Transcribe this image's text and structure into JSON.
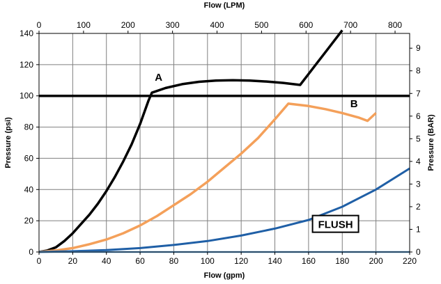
{
  "chart_data": {
    "type": "line",
    "xlabel": "Flow (gpm)",
    "ylabel": "Pressure (psi)",
    "x2label": "Flow (LPM)",
    "y2label": "Pressure (BAR)",
    "xlim": [
      0,
      220
    ],
    "ylim": [
      0,
      140
    ],
    "x2lim": [
      0,
      832.8
    ],
    "y2lim": [
      0,
      9.652
    ],
    "xticks": [
      "0",
      "20",
      "40",
      "60",
      "80",
      "100",
      "120",
      "140",
      "160",
      "180",
      "200",
      "220"
    ],
    "yticks": [
      "0",
      "20",
      "40",
      "60",
      "80",
      "100",
      "120",
      "140"
    ],
    "x2ticks": [
      "0",
      "100",
      "200",
      "300",
      "400",
      "500",
      "600",
      "700",
      "800"
    ],
    "y2ticks": [
      "0",
      "1",
      "2",
      "3",
      "4",
      "5",
      "6",
      "7",
      "8",
      "9"
    ],
    "grid": true,
    "series": [
      {
        "name": "A",
        "color": "#000000",
        "x": [
          0,
          5,
          10,
          15,
          20,
          25,
          30,
          35,
          40,
          45,
          50,
          55,
          60,
          65,
          67,
          75,
          85,
          95,
          105,
          115,
          125,
          135,
          145,
          155,
          160,
          165,
          170,
          175,
          180
        ],
        "y": [
          0,
          1,
          3,
          7,
          12,
          18,
          24,
          31,
          39,
          48,
          58,
          69,
          82,
          97,
          102,
          105,
          107.5,
          109,
          109.8,
          110,
          109.8,
          109.2,
          108.3,
          107,
          114,
          121,
          128,
          135,
          142
        ]
      },
      {
        "name": "B",
        "color": "#f4a05a",
        "x": [
          0,
          10,
          20,
          30,
          40,
          50,
          60,
          70,
          80,
          90,
          100,
          110,
          120,
          130,
          140,
          148,
          160,
          170,
          180,
          190,
          195,
          200
        ],
        "y": [
          0,
          1,
          2.5,
          5,
          8,
          12,
          17,
          23,
          30,
          37,
          45,
          54,
          63,
          73,
          85,
          95,
          93.5,
          91.5,
          89,
          86,
          84,
          89
        ]
      },
      {
        "name": "FLUSH",
        "color": "#1f5fa6",
        "x": [
          0,
          20,
          40,
          60,
          80,
          100,
          120,
          140,
          160,
          180,
          200,
          220
        ],
        "y": [
          0,
          0.5,
          1.2,
          2.5,
          4.5,
          7,
          10.5,
          15,
          20.5,
          29,
          40,
          53.5
        ]
      },
      {
        "name": "",
        "color": "#5b9bd5",
        "x": [
          0,
          220
        ],
        "y": [
          0,
          0
        ]
      },
      {
        "name": "",
        "color": "#000000",
        "x": [
          0,
          220
        ],
        "y": [
          100,
          100
        ]
      }
    ],
    "annotations": [
      {
        "text": "A",
        "x": 71,
        "y": 112
      },
      {
        "text": "B",
        "x": 187,
        "y": 95
      },
      {
        "text": "FLUSH",
        "x": 176,
        "y": 18,
        "boxed": true
      }
    ]
  }
}
